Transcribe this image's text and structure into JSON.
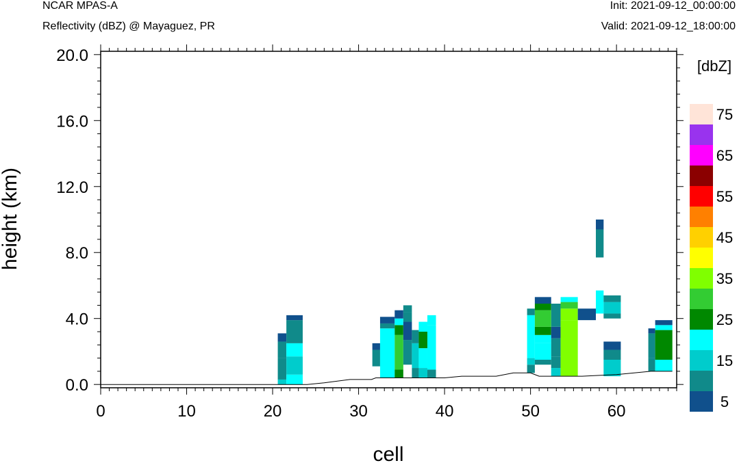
{
  "header": {
    "title": "NCAR MPAS-A",
    "subtitle": "Reflectivity (dBZ) @ Mayaguez, PR",
    "init": "Init: 2021-09-12_00:00:00",
    "valid": "Valid: 2021-09-12_18:00:00"
  },
  "chart_data": {
    "type": "heatmap",
    "xlabel": "cell",
    "ylabel": "height (km)",
    "xlim": [
      0,
      67
    ],
    "ylim": [
      -0.2,
      20.2
    ],
    "x_ticks": [
      0,
      10,
      20,
      30,
      40,
      50,
      60
    ],
    "x_tick_labels": [
      "0",
      "10",
      "20",
      "30",
      "40",
      "50",
      "60"
    ],
    "y_ticks": [
      0,
      4,
      8,
      12,
      16,
      20
    ],
    "y_tick_labels": [
      "0.0",
      "4.0",
      "8.0",
      "12.0",
      "16.0",
      "20.0"
    ],
    "colorbar": {
      "unit_label": "[dbZ]",
      "colors": [
        "#10508c",
        "#108a8a",
        "#00cccc",
        "#00ffff",
        "#008800",
        "#33cc33",
        "#80ff00",
        "#ffff00",
        "#ffd000",
        "#ff8000",
        "#ff0000",
        "#8b0000",
        "#ff00ff",
        "#9933ee",
        "#ffe4d8"
      ],
      "tick_values": [
        5,
        15,
        25,
        35,
        45,
        55,
        65,
        75
      ],
      "tick_labels": [
        "5",
        "15",
        "25",
        "35",
        "45",
        "55",
        "65",
        "75"
      ]
    },
    "terrain": [
      [
        0,
        0.0
      ],
      [
        20.5,
        0.0
      ],
      [
        24,
        0.0
      ],
      [
        26,
        0.1
      ],
      [
        29,
        0.3
      ],
      [
        31.5,
        0.3
      ],
      [
        32,
        0.4
      ],
      [
        40,
        0.4
      ],
      [
        42,
        0.5
      ],
      [
        46,
        0.5
      ],
      [
        48,
        0.7
      ],
      [
        50,
        0.7
      ],
      [
        51,
        0.5
      ],
      [
        56,
        0.5
      ],
      [
        60,
        0.6
      ],
      [
        64,
        0.8
      ],
      [
        66.5,
        0.8
      ]
    ],
    "reflectivity_cells": [
      {
        "x0": 20.6,
        "x1": 21.6,
        "segments": [
          [
            0.0,
            0.3,
            15
          ],
          [
            0.3,
            1.6,
            10
          ],
          [
            1.6,
            2.6,
            10
          ],
          [
            2.6,
            3.1,
            5
          ]
        ]
      },
      {
        "x0": 21.6,
        "x1": 23.5,
        "segments": [
          [
            0.0,
            0.6,
            20
          ],
          [
            0.6,
            1.7,
            15
          ],
          [
            1.7,
            2.5,
            20
          ],
          [
            2.5,
            3.9,
            10
          ],
          [
            3.9,
            4.2,
            5
          ]
        ]
      },
      {
        "x0": 31.6,
        "x1": 32.5,
        "segments": [
          [
            1.1,
            1.5,
            10
          ],
          [
            1.5,
            2.1,
            10
          ],
          [
            2.1,
            2.5,
            5
          ]
        ]
      },
      {
        "x0": 32.5,
        "x1": 34.2,
        "segments": [
          [
            0.4,
            3.4,
            20
          ],
          [
            3.4,
            3.7,
            10
          ],
          [
            3.7,
            4.1,
            5
          ]
        ]
      },
      {
        "x0": 34.2,
        "x1": 35.2,
        "segments": [
          [
            0.4,
            0.9,
            25
          ],
          [
            0.9,
            3.0,
            30
          ],
          [
            3.0,
            3.6,
            25
          ],
          [
            3.6,
            4.0,
            20
          ],
          [
            4.0,
            4.5,
            5
          ]
        ]
      },
      {
        "x0": 35.2,
        "x1": 36.2,
        "segments": [
          [
            1.2,
            2.7,
            10
          ],
          [
            2.7,
            3.2,
            5
          ],
          [
            3.2,
            3.8,
            5
          ],
          [
            3.8,
            4.4,
            10
          ],
          [
            4.4,
            4.8,
            10
          ]
        ]
      },
      {
        "x0": 36.2,
        "x1": 37.0,
        "segments": [
          [
            0.4,
            1.0,
            10
          ],
          [
            1.0,
            2.5,
            15
          ],
          [
            2.5,
            3.3,
            10
          ]
        ]
      },
      {
        "x0": 37.0,
        "x1": 38.0,
        "segments": [
          [
            0.4,
            1.0,
            15
          ],
          [
            1.0,
            2.2,
            20
          ],
          [
            2.2,
            3.2,
            25
          ],
          [
            3.2,
            3.8,
            20
          ]
        ]
      },
      {
        "x0": 38.0,
        "x1": 39.0,
        "segments": [
          [
            0.4,
            0.9,
            10
          ],
          [
            0.9,
            3.6,
            20
          ],
          [
            3.6,
            4.2,
            20
          ]
        ]
      },
      {
        "x0": 49.6,
        "x1": 50.5,
        "segments": [
          [
            0.7,
            1.2,
            10
          ],
          [
            1.2,
            1.6,
            15
          ],
          [
            1.6,
            4.2,
            20
          ],
          [
            4.2,
            4.6,
            10
          ]
        ]
      },
      {
        "x0": 50.5,
        "x1": 52.4,
        "segments": [
          [
            1.2,
            1.5,
            10
          ],
          [
            1.5,
            2.5,
            20
          ],
          [
            2.5,
            3.0,
            20
          ],
          [
            3.0,
            3.5,
            25
          ],
          [
            3.5,
            4.5,
            30
          ],
          [
            4.5,
            4.9,
            25
          ],
          [
            4.9,
            5.3,
            5
          ]
        ]
      },
      {
        "x0": 52.4,
        "x1": 53.5,
        "segments": [
          [
            0.5,
            1.0,
            15
          ],
          [
            1.0,
            1.7,
            10
          ],
          [
            1.7,
            2.8,
            10
          ],
          [
            2.8,
            3.5,
            5
          ],
          [
            3.5,
            4.9,
            10
          ]
        ]
      },
      {
        "x0": 53.5,
        "x1": 55.5,
        "segments": [
          [
            0.5,
            3.9,
            35
          ],
          [
            3.9,
            4.6,
            35
          ],
          [
            4.6,
            5.0,
            30
          ],
          [
            5.0,
            5.3,
            20
          ]
        ]
      },
      {
        "x0": 55.5,
        "x1": 57.6,
        "segments": [
          [
            3.9,
            4.6,
            5
          ]
        ]
      },
      {
        "x0": 57.6,
        "x1": 58.5,
        "segments": [
          [
            4.3,
            5.7,
            20
          ],
          [
            7.7,
            9.4,
            10
          ],
          [
            9.4,
            10.0,
            5
          ]
        ]
      },
      {
        "x0": 58.5,
        "x1": 60.5,
        "segments": [
          [
            0.5,
            1.5,
            15
          ],
          [
            1.5,
            2.1,
            10
          ],
          [
            2.1,
            2.6,
            5
          ],
          [
            4.0,
            4.3,
            10
          ],
          [
            4.3,
            5.0,
            15
          ],
          [
            5.0,
            5.4,
            10
          ]
        ]
      },
      {
        "x0": 63.7,
        "x1": 64.5,
        "segments": [
          [
            0.8,
            1.6,
            10
          ],
          [
            1.6,
            3.1,
            10
          ],
          [
            3.1,
            3.4,
            5
          ]
        ]
      },
      {
        "x0": 64.5,
        "x1": 66.5,
        "segments": [
          [
            0.8,
            1.5,
            20
          ],
          [
            1.5,
            3.3,
            25
          ],
          [
            3.3,
            3.6,
            20
          ],
          [
            3.6,
            3.9,
            5
          ]
        ]
      }
    ]
  }
}
